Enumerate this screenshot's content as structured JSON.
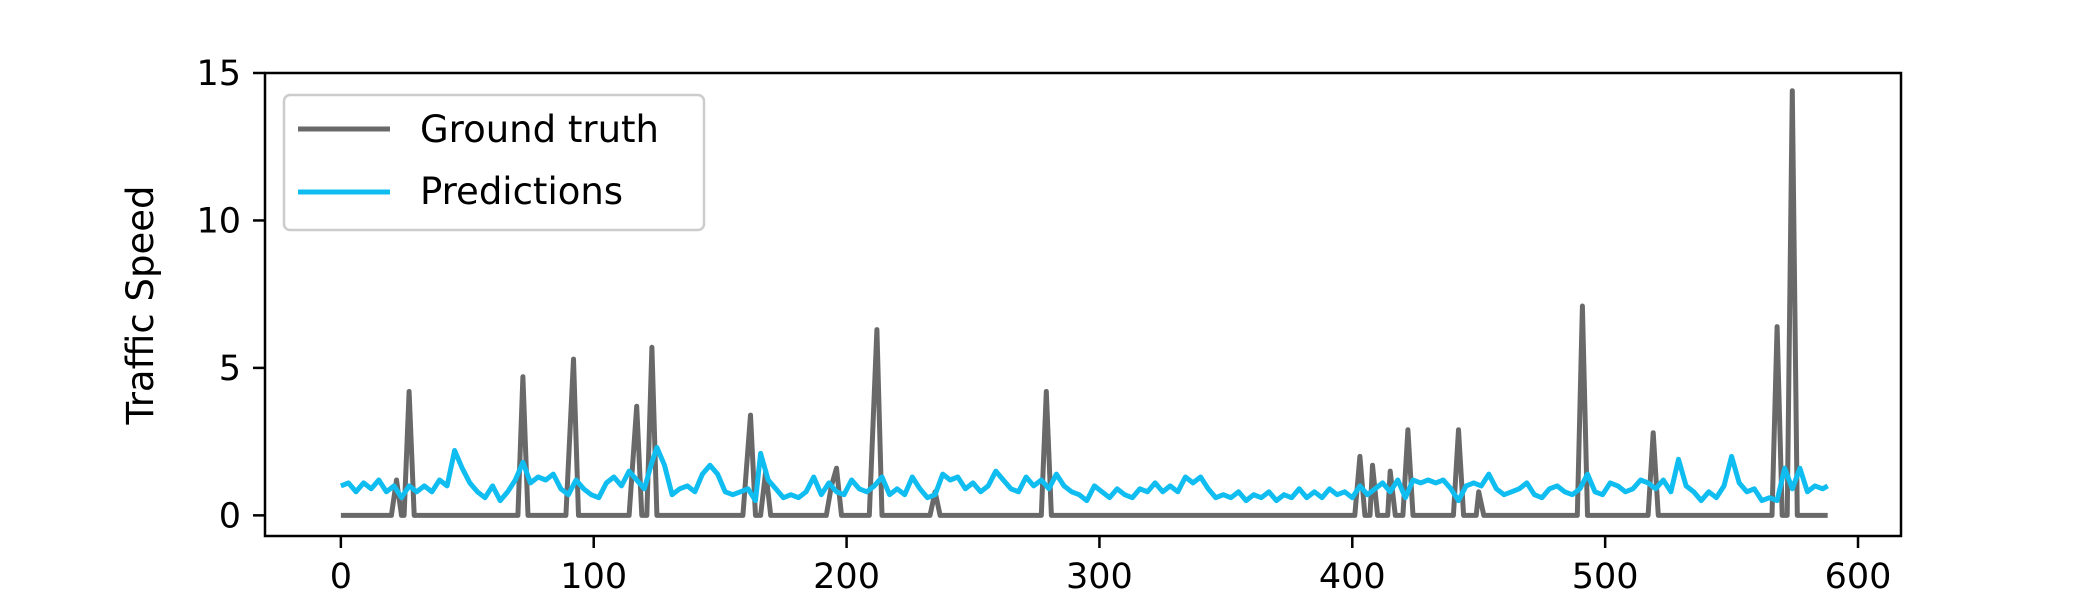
{
  "chart_data": {
    "type": "line",
    "title": "",
    "xlabel": "",
    "ylabel": "Traffic Speed",
    "xlim": [
      -30,
      617
    ],
    "ylim": [
      -0.7,
      15
    ],
    "xticks": [
      0,
      100,
      200,
      300,
      400,
      500,
      600
    ],
    "yticks": [
      0,
      5,
      10,
      15
    ],
    "grid": false,
    "legend_position": "upper-left",
    "series": [
      {
        "name": "Ground truth",
        "color": "#696969",
        "points": [
          [
            0,
            0
          ],
          [
            20,
            0
          ],
          [
            22,
            1.2
          ],
          [
            24,
            0
          ],
          [
            25,
            0
          ],
          [
            27,
            4.2
          ],
          [
            29,
            0
          ],
          [
            70,
            0
          ],
          [
            72,
            4.7
          ],
          [
            74,
            0
          ],
          [
            89,
            0
          ],
          [
            92,
            5.3
          ],
          [
            94,
            0
          ],
          [
            114,
            0
          ],
          [
            117,
            3.7
          ],
          [
            119,
            0
          ],
          [
            121,
            0
          ],
          [
            123,
            5.7
          ],
          [
            125,
            0
          ],
          [
            159,
            0
          ],
          [
            162,
            3.4
          ],
          [
            164,
            0
          ],
          [
            166,
            0
          ],
          [
            168,
            1.5
          ],
          [
            170,
            0
          ],
          [
            192,
            0
          ],
          [
            194,
            1.0
          ],
          [
            196,
            1.6
          ],
          [
            198,
            0
          ],
          [
            209,
            0
          ],
          [
            212,
            6.3
          ],
          [
            214,
            0
          ],
          [
            233,
            0
          ],
          [
            235,
            0.8
          ],
          [
            237,
            0
          ],
          [
            277,
            0
          ],
          [
            279,
            4.2
          ],
          [
            281,
            0
          ],
          [
            401,
            0
          ],
          [
            403,
            2.0
          ],
          [
            405,
            0
          ],
          [
            407,
            0
          ],
          [
            408,
            1.7
          ],
          [
            410,
            0
          ],
          [
            414,
            0
          ],
          [
            415,
            1.5
          ],
          [
            417,
            0
          ],
          [
            420,
            0
          ],
          [
            422,
            2.9
          ],
          [
            424,
            0
          ],
          [
            440,
            0
          ],
          [
            442,
            2.9
          ],
          [
            444,
            0
          ],
          [
            449,
            0
          ],
          [
            450,
            0.8
          ],
          [
            452,
            0
          ],
          [
            489,
            0
          ],
          [
            491,
            7.1
          ],
          [
            493,
            0
          ],
          [
            517,
            0
          ],
          [
            519,
            2.8
          ],
          [
            521,
            0
          ],
          [
            566,
            0
          ],
          [
            568,
            6.4
          ],
          [
            570,
            0
          ],
          [
            572,
            0
          ],
          [
            574,
            14.4
          ],
          [
            576,
            0
          ],
          [
            588,
            0
          ]
        ]
      },
      {
        "name": "Predictions",
        "color": "#10bdf0",
        "points": [
          [
            0,
            1.0
          ],
          [
            3,
            1.1
          ],
          [
            6,
            0.8
          ],
          [
            9,
            1.1
          ],
          [
            12,
            0.9
          ],
          [
            15,
            1.2
          ],
          [
            18,
            0.8
          ],
          [
            21,
            1.0
          ],
          [
            24,
            0.6
          ],
          [
            27,
            1.0
          ],
          [
            30,
            0.8
          ],
          [
            33,
            1.0
          ],
          [
            36,
            0.8
          ],
          [
            39,
            1.2
          ],
          [
            42,
            1.0
          ],
          [
            45,
            2.2
          ],
          [
            48,
            1.6
          ],
          [
            51,
            1.1
          ],
          [
            54,
            0.8
          ],
          [
            57,
            0.6
          ],
          [
            60,
            1.0
          ],
          [
            63,
            0.5
          ],
          [
            66,
            0.8
          ],
          [
            69,
            1.2
          ],
          [
            72,
            1.8
          ],
          [
            75,
            1.1
          ],
          [
            78,
            1.3
          ],
          [
            81,
            1.2
          ],
          [
            84,
            1.4
          ],
          [
            87,
            0.9
          ],
          [
            90,
            0.7
          ],
          [
            93,
            1.2
          ],
          [
            96,
            0.9
          ],
          [
            99,
            0.7
          ],
          [
            102,
            0.6
          ],
          [
            105,
            1.1
          ],
          [
            108,
            1.3
          ],
          [
            111,
            1.0
          ],
          [
            114,
            1.5
          ],
          [
            117,
            1.2
          ],
          [
            120,
            0.9
          ],
          [
            123,
            1.8
          ],
          [
            125,
            2.3
          ],
          [
            128,
            1.7
          ],
          [
            131,
            0.7
          ],
          [
            134,
            0.9
          ],
          [
            137,
            1.0
          ],
          [
            140,
            0.8
          ],
          [
            143,
            1.4
          ],
          [
            146,
            1.7
          ],
          [
            149,
            1.4
          ],
          [
            152,
            0.8
          ],
          [
            155,
            0.7
          ],
          [
            158,
            0.8
          ],
          [
            161,
            0.9
          ],
          [
            164,
            0.5
          ],
          [
            166,
            2.1
          ],
          [
            169,
            1.2
          ],
          [
            172,
            0.9
          ],
          [
            175,
            0.6
          ],
          [
            178,
            0.7
          ],
          [
            181,
            0.6
          ],
          [
            184,
            0.8
          ],
          [
            187,
            1.3
          ],
          [
            190,
            0.7
          ],
          [
            193,
            1.1
          ],
          [
            196,
            0.8
          ],
          [
            199,
            0.7
          ],
          [
            202,
            1.2
          ],
          [
            205,
            0.9
          ],
          [
            208,
            0.8
          ],
          [
            211,
            1.0
          ],
          [
            214,
            1.3
          ],
          [
            217,
            0.7
          ],
          [
            220,
            0.9
          ],
          [
            223,
            0.7
          ],
          [
            226,
            1.3
          ],
          [
            229,
            0.9
          ],
          [
            232,
            0.6
          ],
          [
            235,
            0.7
          ],
          [
            238,
            1.4
          ],
          [
            241,
            1.2
          ],
          [
            244,
            1.3
          ],
          [
            247,
            0.9
          ],
          [
            250,
            1.1
          ],
          [
            253,
            0.8
          ],
          [
            256,
            1.0
          ],
          [
            259,
            1.5
          ],
          [
            262,
            1.2
          ],
          [
            265,
            0.9
          ],
          [
            268,
            0.8
          ],
          [
            271,
            1.3
          ],
          [
            274,
            1.0
          ],
          [
            277,
            1.2
          ],
          [
            280,
            0.9
          ],
          [
            283,
            1.4
          ],
          [
            286,
            1.0
          ],
          [
            289,
            0.8
          ],
          [
            292,
            0.7
          ],
          [
            295,
            0.5
          ],
          [
            298,
            1.0
          ],
          [
            301,
            0.8
          ],
          [
            304,
            0.6
          ],
          [
            307,
            0.9
          ],
          [
            310,
            0.7
          ],
          [
            313,
            0.6
          ],
          [
            316,
            0.9
          ],
          [
            319,
            0.8
          ],
          [
            322,
            1.1
          ],
          [
            325,
            0.8
          ],
          [
            328,
            1.0
          ],
          [
            331,
            0.8
          ],
          [
            334,
            1.3
          ],
          [
            337,
            1.1
          ],
          [
            340,
            1.3
          ],
          [
            343,
            0.9
          ],
          [
            346,
            0.6
          ],
          [
            349,
            0.7
          ],
          [
            352,
            0.6
          ],
          [
            355,
            0.8
          ],
          [
            358,
            0.5
          ],
          [
            361,
            0.7
          ],
          [
            364,
            0.6
          ],
          [
            367,
            0.8
          ],
          [
            370,
            0.5
          ],
          [
            373,
            0.7
          ],
          [
            376,
            0.6
          ],
          [
            379,
            0.9
          ],
          [
            382,
            0.6
          ],
          [
            385,
            0.8
          ],
          [
            388,
            0.6
          ],
          [
            391,
            0.9
          ],
          [
            394,
            0.7
          ],
          [
            397,
            0.8
          ],
          [
            400,
            0.6
          ],
          [
            403,
            1.0
          ],
          [
            406,
            0.7
          ],
          [
            409,
            0.9
          ],
          [
            412,
            1.1
          ],
          [
            415,
            0.8
          ],
          [
            418,
            1.2
          ],
          [
            421,
            0.6
          ],
          [
            424,
            1.2
          ],
          [
            427,
            1.1
          ],
          [
            430,
            1.2
          ],
          [
            433,
            1.1
          ],
          [
            436,
            1.2
          ],
          [
            439,
            0.9
          ],
          [
            442,
            0.5
          ],
          [
            445,
            1.0
          ],
          [
            448,
            1.1
          ],
          [
            451,
            1.0
          ],
          [
            454,
            1.4
          ],
          [
            457,
            0.9
          ],
          [
            460,
            0.7
          ],
          [
            463,
            0.8
          ],
          [
            466,
            0.9
          ],
          [
            469,
            1.1
          ],
          [
            472,
            0.7
          ],
          [
            475,
            0.6
          ],
          [
            478,
            0.9
          ],
          [
            481,
            1.0
          ],
          [
            484,
            0.8
          ],
          [
            487,
            0.7
          ],
          [
            490,
            0.9
          ],
          [
            493,
            1.4
          ],
          [
            496,
            0.8
          ],
          [
            499,
            0.7
          ],
          [
            502,
            1.1
          ],
          [
            505,
            1.0
          ],
          [
            508,
            0.8
          ],
          [
            511,
            0.9
          ],
          [
            514,
            1.2
          ],
          [
            517,
            1.1
          ],
          [
            520,
            0.9
          ],
          [
            523,
            1.2
          ],
          [
            526,
            0.8
          ],
          [
            529,
            1.9
          ],
          [
            532,
            1.0
          ],
          [
            535,
            0.8
          ],
          [
            538,
            0.5
          ],
          [
            541,
            0.8
          ],
          [
            544,
            0.6
          ],
          [
            547,
            1.0
          ],
          [
            550,
            2.0
          ],
          [
            553,
            1.1
          ],
          [
            556,
            0.8
          ],
          [
            559,
            0.9
          ],
          [
            562,
            0.5
          ],
          [
            565,
            0.6
          ],
          [
            568,
            0.5
          ],
          [
            571,
            1.6
          ],
          [
            574,
            0.9
          ],
          [
            577,
            1.6
          ],
          [
            580,
            0.8
          ],
          [
            583,
            1.0
          ],
          [
            586,
            0.9
          ],
          [
            588,
            1.0
          ]
        ]
      }
    ]
  }
}
